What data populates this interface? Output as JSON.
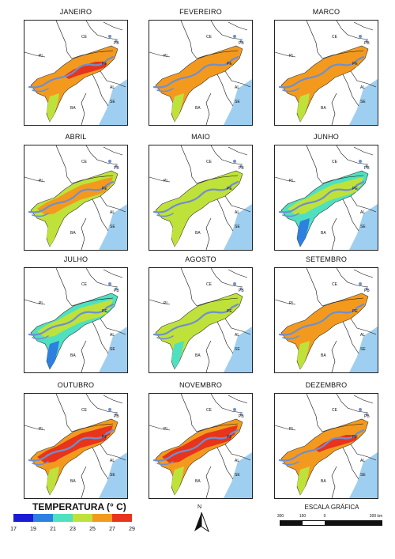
{
  "months": [
    {
      "name": "JANEIRO",
      "zones": {
        "outer": "#f39a1e",
        "mid": "#f39a1e",
        "core": "#e8341c",
        "south": "#bfe23a"
      }
    },
    {
      "name": "FEVEREIRO",
      "zones": {
        "outer": "#f39a1e",
        "mid": "#f39a1e",
        "core": "#f39a1e",
        "south": "#bfe23a"
      }
    },
    {
      "name": "MARCO",
      "zones": {
        "outer": "#f39a1e",
        "mid": "#f39a1e",
        "core": "#f39a1e",
        "south": "#bfe23a"
      }
    },
    {
      "name": "ABRIL",
      "zones": {
        "outer": "#bfe23a",
        "mid": "#f39a1e",
        "core": "#f39a1e",
        "south": "#bfe23a"
      }
    },
    {
      "name": "MAIO",
      "zones": {
        "outer": "#bfe23a",
        "mid": "#bfe23a",
        "core": "#bfe23a",
        "south": "#bfe23a"
      }
    },
    {
      "name": "JUNHO",
      "zones": {
        "outer": "#4fe0c0",
        "mid": "#bfe23a",
        "core": "#bfe23a",
        "south": "#2d7fe0"
      }
    },
    {
      "name": "JULHO",
      "zones": {
        "outer": "#4fe0c0",
        "mid": "#bfe23a",
        "core": "#bfe23a",
        "south": "#2d7fe0"
      }
    },
    {
      "name": "AGOSTO",
      "zones": {
        "outer": "#bfe23a",
        "mid": "#bfe23a",
        "core": "#bfe23a",
        "south": "#4fe0c0"
      }
    },
    {
      "name": "SETEMBRO",
      "zones": {
        "outer": "#f39a1e",
        "mid": "#f39a1e",
        "core": "#f39a1e",
        "south": "#bfe23a"
      }
    },
    {
      "name": "OUTUBRO",
      "zones": {
        "outer": "#f39a1e",
        "mid": "#e8341c",
        "core": "#e8341c",
        "south": "#bfe23a"
      }
    },
    {
      "name": "NOVEMBRO",
      "zones": {
        "outer": "#f39a1e",
        "mid": "#e8341c",
        "core": "#e8341c",
        "south": "#bfe23a"
      }
    },
    {
      "name": "DEZEMBRO",
      "zones": {
        "outer": "#f39a1e",
        "mid": "#f39a1e",
        "core": "#e8341c",
        "south": "#bfe23a"
      }
    }
  ],
  "state_labels": [
    "CE",
    "PB",
    "PI",
    "PE",
    "AL",
    "SE",
    "BA"
  ],
  "legend": {
    "title": "TEMPERATURA (° C)",
    "ticks": [
      "17",
      "19",
      "21",
      "23",
      "25",
      "27",
      "29"
    ],
    "colors": [
      "#1b1bd6",
      "#2d7fe0",
      "#4fe0c0",
      "#bfe23a",
      "#f39a1e",
      "#e8341c"
    ]
  },
  "north_label": "N",
  "scale": {
    "title": "ESCALA GRÁFICA",
    "ticks": [
      "300",
      "150",
      "0",
      "300 km"
    ]
  },
  "colors": {
    "sea": "#9fcff0",
    "river": "#6f8fd0",
    "border": "#111111"
  }
}
